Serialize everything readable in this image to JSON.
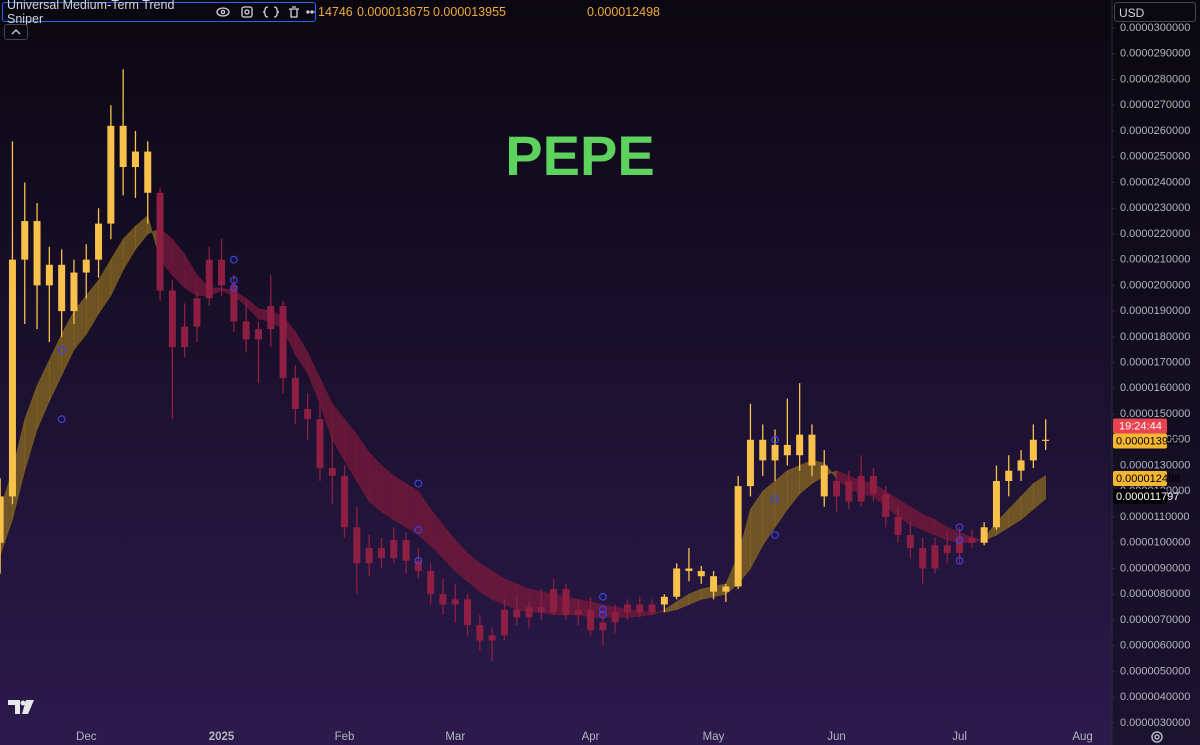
{
  "header": {
    "indicator": "Universal Medium-Term Trend Sniper",
    "values": [
      "14746",
      "0.000013675",
      "0.000013955"
    ],
    "value_right": "0.000012498",
    "currency": "USD"
  },
  "chart_data": {
    "type": "candlestick",
    "title": "PEPE",
    "title_color": "#5dd35d",
    "up_color": "#f7c14b",
    "down_color": "#8f1f42",
    "ribbon_up_color": "#8a6a22",
    "ribbon_down_color": "#7a1a3c",
    "categories": [
      null,
      null,
      null,
      null,
      null,
      null,
      null,
      "Dec",
      null,
      null,
      null,
      null,
      null,
      null,
      null,
      null,
      null,
      null,
      "2025",
      null,
      null,
      null,
      null,
      null,
      null,
      null,
      null,
      null,
      "Feb",
      null,
      null,
      null,
      null,
      null,
      null,
      null,
      null,
      "Mar",
      null,
      null,
      null,
      null,
      null,
      null,
      null,
      null,
      null,
      null,
      "Apr",
      null,
      null,
      null,
      null,
      null,
      null,
      null,
      null,
      null,
      "May",
      null,
      null,
      null,
      null,
      null,
      null,
      null,
      null,
      null,
      "Jun",
      null,
      null,
      null,
      null,
      null,
      null,
      null,
      null,
      null,
      "Jul",
      null,
      null,
      null,
      null,
      null,
      null,
      null,
      null,
      null,
      "Aug"
    ],
    "open": [
      1e-05,
      1.18e-05,
      2.1e-05,
      2.25e-05,
      2e-05,
      2.08e-05,
      1.9e-05,
      2.05e-05,
      2.1e-05,
      2.24e-05,
      2.62e-05,
      2.46e-05,
      2.52e-05,
      2.36e-05,
      1.98e-05,
      1.76e-05,
      1.84e-05,
      1.95e-05,
      2.1e-05,
      2e-05,
      1.86e-05,
      1.79e-05,
      1.83e-05,
      1.92e-05,
      1.64e-05,
      1.52e-05,
      1.48e-05,
      1.29e-05,
      1.26e-05,
      1.06e-05,
      9.2e-06,
      9.8e-06,
      9.4e-06,
      1.01e-05,
      9.3e-06,
      8.9e-06,
      8e-06,
      7.6e-06,
      7.8e-06,
      6.8e-06,
      6.2e-06,
      6.4e-06,
      7.4e-06,
      7.1e-06,
      7.5e-06,
      7.3e-06,
      8.2e-06,
      7.2e-06,
      7.4e-06,
      6.6e-06,
      6.9e-06,
      7.3e-06,
      7.6e-06,
      7.3e-06,
      7.6e-06,
      7.9e-06,
      9e-06,
      8.9e-06,
      8.7e-06,
      8.1e-06,
      8.3e-06,
      1.22e-05,
      1.4e-05,
      1.32e-05,
      1.38e-05,
      1.34e-05,
      1.42e-05,
      1.3e-05,
      1.18e-05,
      1.24e-05,
      1.16e-05,
      1.26e-05,
      1.19e-05,
      1.1e-05,
      1.03e-05,
      9.8e-06,
      9e-06,
      9.9e-06,
      9.6e-06,
      1.02e-05,
      1e-05,
      1.06e-05,
      1.24e-05,
      1.28e-05,
      1.32e-05,
      1.4e-05,
      null,
      null,
      null
    ],
    "high": [
      1.25e-05,
      2.56e-05,
      2.4e-05,
      2.32e-05,
      2.15e-05,
      2.14e-05,
      2.1e-05,
      2.16e-05,
      2.3e-05,
      2.7e-05,
      2.84e-05,
      2.6e-05,
      2.56e-05,
      2.38e-05,
      2.02e-05,
      1.93e-05,
      1.98e-05,
      2.15e-05,
      2.18e-05,
      2.04e-05,
      1.94e-05,
      1.86e-05,
      2.04e-05,
      1.94e-05,
      1.69e-05,
      1.58e-05,
      1.54e-05,
      1.42e-05,
      1.3e-05,
      1.14e-05,
      1.03e-05,
      1.02e-05,
      1.06e-05,
      1.04e-05,
      9.8e-06,
      9.2e-06,
      8.6e-06,
      8.4e-06,
      8e-06,
      7.2e-06,
      6.7e-06,
      7.8e-06,
      7.9e-06,
      7.7e-06,
      8.2e-06,
      8.6e-06,
      8.4e-06,
      7.8e-06,
      7.9e-06,
      7.2e-06,
      7.6e-06,
      7.8e-06,
      7.9e-06,
      7.8e-06,
      8e-06,
      9.2e-06,
      9.8e-06,
      9.1e-06,
      8.9e-06,
      8.4e-06,
      1.26e-05,
      1.54e-05,
      1.46e-05,
      1.44e-05,
      1.56e-05,
      1.62e-05,
      1.46e-05,
      1.36e-05,
      1.28e-05,
      1.28e-05,
      1.34e-05,
      1.29e-05,
      1.22e-05,
      1.14e-05,
      1.08e-05,
      1.02e-05,
      1.02e-05,
      1.04e-05,
      1.06e-05,
      1.05e-05,
      1.08e-05,
      1.3e-05,
      1.34e-05,
      1.36e-05,
      1.46e-05,
      1.48e-05,
      null,
      null,
      null
    ],
    "low": [
      8.8e-06,
      1.15e-05,
      1.85e-05,
      1.83e-05,
      1.78e-05,
      1.8e-05,
      1.85e-05,
      1.95e-05,
      2.03e-05,
      2.18e-05,
      2.35e-05,
      2.34e-05,
      2.24e-05,
      1.94e-05,
      1.48e-05,
      1.72e-05,
      1.78e-05,
      1.92e-05,
      1.96e-05,
      1.82e-05,
      1.74e-05,
      1.62e-05,
      1.76e-05,
      1.58e-05,
      1.46e-05,
      1.4e-05,
      1.24e-05,
      1.15e-05,
      1.02e-05,
      8e-06,
      8.7e-06,
      9e-06,
      9.2e-06,
      8.8e-06,
      8.6e-06,
      7.6e-06,
      7.2e-06,
      6.9e-06,
      6.4e-06,
      5.8e-06,
      5.4e-06,
      6.2e-06,
      6.8e-06,
      6.7e-06,
      7e-06,
      7.2e-06,
      7e-06,
      6.8e-06,
      6.4e-06,
      6e-06,
      6.5e-06,
      7e-06,
      7.1e-06,
      7.2e-06,
      7.3e-06,
      7.8e-06,
      8.5e-06,
      8.4e-06,
      7.8e-06,
      7.7e-06,
      8.2e-06,
      1.18e-05,
      1.26e-05,
      1.24e-05,
      1.3e-05,
      1.28e-05,
      1.26e-05,
      1.14e-05,
      1.12e-05,
      1.13e-05,
      1.14e-05,
      1.16e-05,
      1.06e-05,
      1e-05,
      9.4e-06,
      8.4e-06,
      8.8e-06,
      9.2e-06,
      9.2e-06,
      9.8e-06,
      9.9e-06,
      1.05e-05,
      1.18e-05,
      1.24e-05,
      1.29e-05,
      1.36e-05,
      null,
      null,
      null
    ],
    "close": [
      1.18e-05,
      2.1e-05,
      2.25e-05,
      2e-05,
      2.08e-05,
      1.9e-05,
      2.05e-05,
      2.1e-05,
      2.24e-05,
      2.62e-05,
      2.46e-05,
      2.52e-05,
      2.36e-05,
      1.98e-05,
      1.76e-05,
      1.84e-05,
      1.95e-05,
      2.1e-05,
      2e-05,
      1.86e-05,
      1.79e-05,
      1.83e-05,
      1.92e-05,
      1.64e-05,
      1.52e-05,
      1.48e-05,
      1.29e-05,
      1.26e-05,
      1.06e-05,
      9.2e-06,
      9.8e-06,
      9.4e-06,
      1.01e-05,
      9.3e-06,
      8.9e-06,
      8e-06,
      7.6e-06,
      7.8e-06,
      6.8e-06,
      6.2e-06,
      6.4e-06,
      7.4e-06,
      7.1e-06,
      7.5e-06,
      7.3e-06,
      8.2e-06,
      7.2e-06,
      7.4e-06,
      6.6e-06,
      6.9e-06,
      7.3e-06,
      7.6e-06,
      7.3e-06,
      7.6e-06,
      7.9e-06,
      9e-06,
      8.9e-06,
      8.7e-06,
      8.1e-06,
      8.3e-06,
      1.22e-05,
      1.4e-05,
      1.32e-05,
      1.38e-05,
      1.34e-05,
      1.42e-05,
      1.3e-05,
      1.18e-05,
      1.24e-05,
      1.16e-05,
      1.26e-05,
      1.19e-05,
      1.1e-05,
      1.03e-05,
      9.8e-06,
      9e-06,
      9.9e-06,
      9.6e-06,
      1.02e-05,
      1e-05,
      1.06e-05,
      1.24e-05,
      1.28e-05,
      1.32e-05,
      1.4e-05,
      1.3955e-05,
      null,
      null,
      null
    ],
    "ribbon": {
      "fast": [
        1.13e-05,
        1.28e-05,
        1.48e-05,
        1.61e-05,
        1.71e-05,
        1.81e-05,
        1.9e-05,
        1.96e-05,
        2.02e-05,
        2.1e-05,
        2.18e-05,
        2.23e-05,
        2.27e-05,
        2.1e-05,
        2.04e-05,
        1.99e-05,
        1.96e-05,
        1.96e-05,
        1.98e-05,
        1.96e-05,
        1.92e-05,
        1.87e-05,
        1.86e-05,
        1.83e-05,
        1.73e-05,
        1.66e-05,
        1.54e-05,
        1.4e-05,
        1.32e-05,
        1.24e-05,
        1.16e-05,
        1.12e-05,
        1.09e-05,
        1.06e-05,
        1.03e-05,
        9.9e-06,
        9.4e-06,
        8.9e-06,
        8.5e-06,
        8.1e-06,
        7.8e-06,
        7.6e-06,
        7.4e-06,
        7.3e-06,
        7.3e-06,
        7.2e-06,
        7.2e-06,
        7.2e-06,
        7.1e-06,
        7.1e-06,
        7.1e-06,
        7.1e-06,
        7.15e-06,
        7.2e-06,
        7.4e-06,
        7.7e-06,
        8e-06,
        8.2e-06,
        8.3e-06,
        8.4e-06,
        9.5e-06,
        1.13e-05,
        1.2e-05,
        1.24e-05,
        1.28e-05,
        1.3e-05,
        1.32e-05,
        1.31e-05,
        1.25e-05,
        1.21e-05,
        1.19e-05,
        1.18e-05,
        1.14e-05,
        1.1e-05,
        1.07e-05,
        1.05e-05,
        1.03e-05,
        1.01e-05,
        1e-05,
        1e-05,
        1.015e-05,
        1.08e-05,
        1.13e-05,
        1.18e-05,
        1.23e-05,
        1.26e-05,
        null,
        null,
        null
      ],
      "slow": [
        9.5e-06,
        1.09e-05,
        1.28e-05,
        1.44e-05,
        1.55e-05,
        1.65e-05,
        1.75e-05,
        1.81e-05,
        1.89e-05,
        1.96e-05,
        2.06e-05,
        2.14e-05,
        2.2e-05,
        2.22e-05,
        2.18e-05,
        2.12e-05,
        2.04e-05,
        1.99e-05,
        1.99e-05,
        1.98e-05,
        1.95e-05,
        1.91e-05,
        1.9e-05,
        1.88e-05,
        1.82e-05,
        1.74e-05,
        1.64e-05,
        1.54e-05,
        1.48e-05,
        1.42e-05,
        1.35e-05,
        1.3e-05,
        1.26e-05,
        1.23e-05,
        1.2e-05,
        1.13e-05,
        1.07e-05,
        1.01e-05,
        9.6e-06,
        9.2e-06,
        8.9e-06,
        8.6e-06,
        8.4e-06,
        8.2e-06,
        8.1e-06,
        8e-06,
        7.9e-06,
        7.8e-06,
        7.7e-06,
        7.6e-06,
        7.5e-06,
        7.4e-06,
        7.35e-06,
        7.3e-06,
        7.3e-06,
        7.4e-06,
        7.6e-06,
        7.8e-06,
        7.9e-06,
        8e-06,
        8.4e-06,
        9e-06,
        9.9e-06,
        1.06e-05,
        1.13e-05,
        1.19e-05,
        1.23e-05,
        1.26e-05,
        1.28e-05,
        1.26e-05,
        1.24e-05,
        1.23e-05,
        1.2e-05,
        1.17e-05,
        1.14e-05,
        1.11e-05,
        1.09e-05,
        1.06e-05,
        1.04e-05,
        1.02e-05,
        1.01e-05,
        1.03e-05,
        1.06e-05,
        1.09e-05,
        1.13e-05,
        1.17e-05,
        null,
        null,
        null
      ]
    },
    "markers": {
      "color": "#3a44e0",
      "points": [
        {
          "index": 5,
          "value": 1.75e-05
        },
        {
          "index": 5,
          "value": 1.48e-05
        },
        {
          "index": 19,
          "value": 2.1e-05
        },
        {
          "index": 19,
          "value": 2.02e-05
        },
        {
          "index": 19,
          "value": 1.99e-05
        },
        {
          "index": 34,
          "value": 1.23e-05
        },
        {
          "index": 34,
          "value": 1.05e-05
        },
        {
          "index": 34,
          "value": 9.3e-06
        },
        {
          "index": 49,
          "value": 7.9e-06
        },
        {
          "index": 49,
          "value": 7.4e-06
        },
        {
          "index": 49,
          "value": 7.2e-06
        },
        {
          "index": 63,
          "value": 1.4e-05
        },
        {
          "index": 63,
          "value": 1.17e-05
        },
        {
          "index": 63,
          "value": 1.03e-05
        },
        {
          "index": 78,
          "value": 1.06e-05
        },
        {
          "index": 78,
          "value": 1.01e-05
        },
        {
          "index": 78,
          "value": 9.3e-06
        }
      ]
    },
    "ylim": [
      2.14e-06,
      3.109e-05
    ],
    "yticks": [
      {
        "value": 3e-06,
        "label": "0.0000030000"
      },
      {
        "value": 4e-06,
        "label": "0.0000040000"
      },
      {
        "value": 5e-06,
        "label": "0.0000050000"
      },
      {
        "value": 6e-06,
        "label": "0.0000060000"
      },
      {
        "value": 7e-06,
        "label": "0.0000070000"
      },
      {
        "value": 8e-06,
        "label": "0.0000080000"
      },
      {
        "value": 9e-06,
        "label": "0.0000090000"
      },
      {
        "value": 1e-05,
        "label": "0.0000100000"
      },
      {
        "value": 1.1e-05,
        "label": "0.0000110000"
      },
      {
        "value": 1.2e-05,
        "label": "0.0000120000"
      },
      {
        "value": 1.3e-05,
        "label": "0.0000130000"
      },
      {
        "value": 1.4e-05,
        "label": "0.0000140000"
      },
      {
        "value": 1.5e-05,
        "label": "0.0000150000"
      },
      {
        "value": 1.6e-05,
        "label": "0.0000160000"
      },
      {
        "value": 1.7e-05,
        "label": "0.0000170000"
      },
      {
        "value": 1.8e-05,
        "label": "0.0000180000"
      },
      {
        "value": 1.9e-05,
        "label": "0.0000190000"
      },
      {
        "value": 2e-05,
        "label": "0.0000200000"
      },
      {
        "value": 2.1e-05,
        "label": "0.0000210000"
      },
      {
        "value": 2.2e-05,
        "label": "0.0000220000"
      },
      {
        "value": 2.3e-05,
        "label": "0.0000230000"
      },
      {
        "value": 2.4e-05,
        "label": "0.0000240000"
      },
      {
        "value": 2.5e-05,
        "label": "0.0000250000"
      },
      {
        "value": 2.6e-05,
        "label": "0.0000260000"
      },
      {
        "value": 2.7e-05,
        "label": "0.0000270000"
      },
      {
        "value": 2.8e-05,
        "label": "0.0000280000"
      },
      {
        "value": 2.9e-05,
        "label": "0.0000290000"
      },
      {
        "value": 3e-05,
        "label": "0.0000300000"
      }
    ],
    "countdown": "19:24:44",
    "countdown_color": "#e8434f",
    "price_tags": [
      {
        "label": "0.000013955",
        "value": 1.3955e-05,
        "bg": "#f5b631",
        "fg": "#000000"
      },
      {
        "label": "0.000012498",
        "value": 1.2498e-05,
        "bg": "#f5b631",
        "fg": "#000000"
      },
      {
        "label": "0.000011797",
        "value": 1.1797e-05,
        "bg": "#000000",
        "fg": "#ffffff"
      }
    ]
  }
}
